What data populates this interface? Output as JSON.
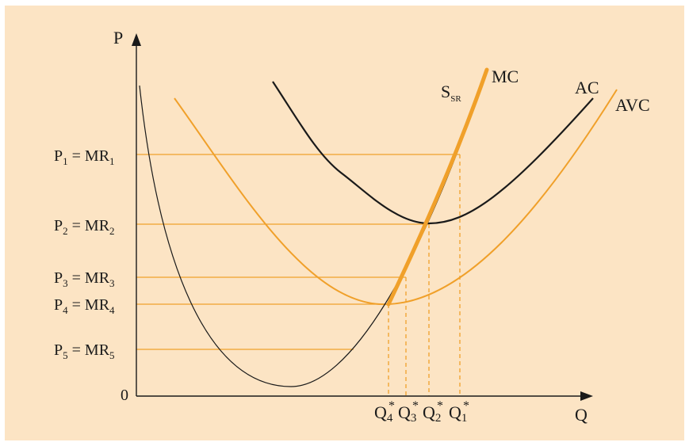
{
  "colors": {
    "background": "#fce4c4",
    "orange": "#f0a02a",
    "black": "#1a1a1a"
  },
  "axes": {
    "y_label": "P",
    "x_label": "Q",
    "origin_label": "0"
  },
  "price_levels": [
    {
      "p": "P",
      "p_sub": "1",
      "mr": "MR",
      "mr_sub": "1"
    },
    {
      "p": "P",
      "p_sub": "2",
      "mr": "MR",
      "mr_sub": "2"
    },
    {
      "p": "P",
      "p_sub": "3",
      "mr": "MR",
      "mr_sub": "3"
    },
    {
      "p": "P",
      "p_sub": "4",
      "mr": "MR",
      "mr_sub": "4"
    },
    {
      "p": "P",
      "p_sub": "5",
      "mr": "MR",
      "mr_sub": "5"
    }
  ],
  "quantities": [
    {
      "q": "Q",
      "sub": "4",
      "sup": "*"
    },
    {
      "q": "Q",
      "sub": "3",
      "sup": "*"
    },
    {
      "q": "Q",
      "sub": "2",
      "sup": "*"
    },
    {
      "q": "Q",
      "sub": "1",
      "sup": "*"
    }
  ],
  "curves": {
    "mc": "MC",
    "ac": "AC",
    "avc": "AVC",
    "supply": "S",
    "supply_sub": "SR"
  }
}
